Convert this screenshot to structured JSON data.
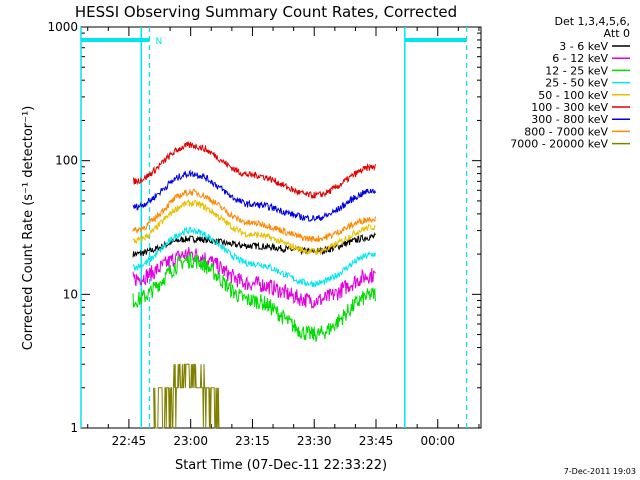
{
  "chart_data": {
    "type": "line",
    "title": "HESSI Observing Summary Count Rates, Corrected",
    "xlabel": "Start Time (07-Dec-11 22:33:22)",
    "ylabel": "Corrected Count Rate (s⁻¹ detector⁻¹)",
    "y_scale": "log",
    "ylim": [
      1,
      1000
    ],
    "xlim": [
      "22:33:22",
      "00:10:30"
    ],
    "x_ticks": [
      "22:45",
      "23:00",
      "23:15",
      "23:30",
      "23:45",
      "00:00"
    ],
    "y_ticks": [
      "1",
      "10",
      "100",
      "1000"
    ],
    "timestamp": "7-Dec-2011 19:03",
    "legend": {
      "header_lines": [
        "Det 1,3,4,5,6,",
        "Att 0"
      ],
      "placement": "right"
    },
    "series": [
      {
        "name": "3 - 6 keV",
        "color": "#000000",
        "times": [
          "22:46",
          "23:00",
          "23:15",
          "23:30",
          "23:45"
        ],
        "values": [
          20,
          26,
          23,
          21,
          27
        ]
      },
      {
        "name": "6 - 12 keV",
        "color": "#e000e0",
        "times": [
          "22:46",
          "23:00",
          "23:15",
          "23:30",
          "23:45"
        ],
        "values": [
          13,
          20,
          12,
          9,
          14
        ]
      },
      {
        "name": "12 - 25 keV",
        "color": "#00dd00",
        "times": [
          "22:46",
          "23:00",
          "23:15",
          "23:30",
          "23:45"
        ],
        "values": [
          9,
          18,
          9,
          5,
          10
        ]
      },
      {
        "name": "25 - 50 keV",
        "color": "#00e5ee",
        "times": [
          "22:46",
          "23:00",
          "23:15",
          "23:30",
          "23:45"
        ],
        "values": [
          16,
          30,
          17,
          12,
          20
        ]
      },
      {
        "name": "50 - 100 keV",
        "color": "#e8c000",
        "times": [
          "22:46",
          "23:00",
          "23:15",
          "23:30",
          "23:45"
        ],
        "values": [
          25,
          48,
          28,
          21,
          32
        ]
      },
      {
        "name": "100 - 300 keV",
        "color": "#e00000",
        "times": [
          "22:46",
          "23:00",
          "23:15",
          "23:30",
          "23:45"
        ],
        "values": [
          70,
          130,
          78,
          55,
          90
        ]
      },
      {
        "name": "300 - 800 keV",
        "color": "#0000dd",
        "times": [
          "22:46",
          "23:00",
          "23:15",
          "23:30",
          "23:45"
        ],
        "values": [
          45,
          80,
          47,
          37,
          60
        ]
      },
      {
        "name": "800 - 7000 keV",
        "color": "#ff8800",
        "times": [
          "22:46",
          "23:00",
          "23:15",
          "23:30",
          "23:45"
        ],
        "values": [
          30,
          58,
          34,
          26,
          37
        ]
      },
      {
        "name": "7000 - 20000 keV",
        "color": "#808000",
        "times": [
          "22:51",
          "23:00",
          "23:07"
        ],
        "values": [
          1.3,
          2.6,
          1.5
        ]
      }
    ],
    "flags": [
      {
        "label": "N",
        "color": "#00e5ee",
        "from": "22:33:22",
        "to": "22:50",
        "level": 800
      },
      {
        "label": "",
        "color": "#00e5ee",
        "from": "23:52",
        "to": "00:07",
        "level": 800
      }
    ],
    "markers_dashed": [
      "22:50",
      "00:07"
    ],
    "markers_solid": [
      "22:33:22",
      "22:48",
      "23:52"
    ]
  }
}
